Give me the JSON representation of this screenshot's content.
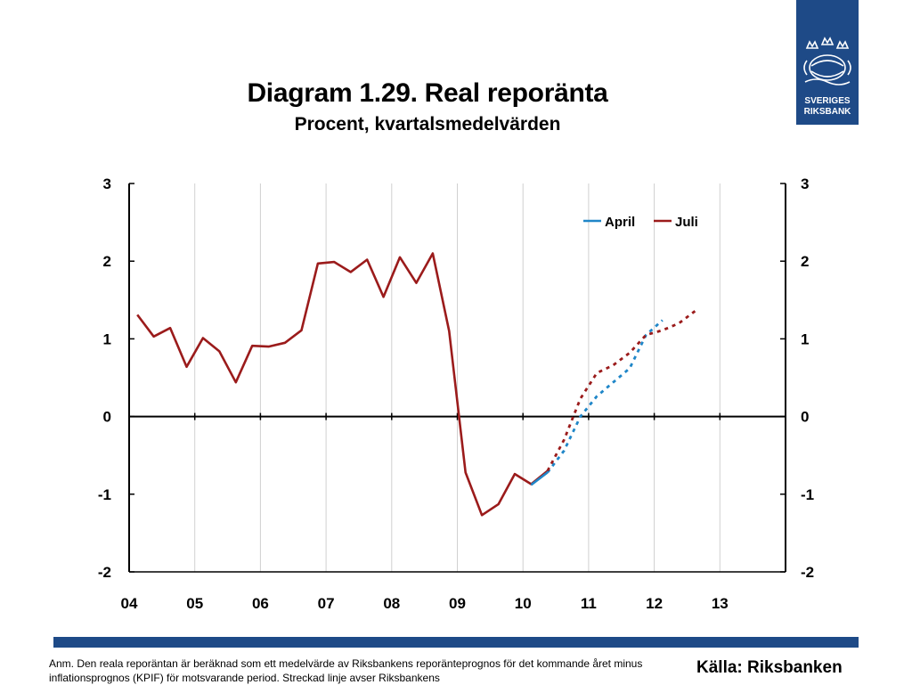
{
  "header": {
    "title": "Diagram 1.29. Real reporänta",
    "subtitle": "Procent, kvartalsmedelvärden"
  },
  "logo": {
    "line1": "SVERIGES",
    "line2": "RIKSBANK",
    "color": "#1e4a87"
  },
  "footer": {
    "note": "Anm. Den reala reporäntan är beräknad som ett medelvärde av Riksbankens reporänteprognos för det kommande året minus inflationsprognos (KPIF) för motsvarande period. Streckad linje avser Riksbankens",
    "source": "Källa: Riksbanken",
    "bar_color": "#1e4a87"
  },
  "chart_data": {
    "type": "line",
    "xlim": [
      2004,
      2014
    ],
    "ylim": [
      -2,
      3
    ],
    "yticks": [
      3,
      2,
      1,
      0,
      -1,
      -2
    ],
    "xticks": [
      "04",
      "05",
      "06",
      "07",
      "08",
      "09",
      "10",
      "11",
      "12",
      "13"
    ],
    "grid": "vertical",
    "legend_position": "top-right",
    "series": [
      {
        "name": "Juli",
        "color": "#9b1b1b",
        "style": "solid",
        "points": [
          [
            2004.125,
            1.31
          ],
          [
            2004.375,
            1.03
          ],
          [
            2004.625,
            1.14
          ],
          [
            2004.875,
            0.64
          ],
          [
            2005.125,
            1.01
          ],
          [
            2005.375,
            0.84
          ],
          [
            2005.625,
            0.44
          ],
          [
            2005.875,
            0.91
          ],
          [
            2006.125,
            0.9
          ],
          [
            2006.375,
            0.95
          ],
          [
            2006.625,
            1.11
          ],
          [
            2006.875,
            1.97
          ],
          [
            2007.125,
            1.99
          ],
          [
            2007.375,
            1.86
          ],
          [
            2007.625,
            2.02
          ],
          [
            2007.875,
            1.54
          ],
          [
            2008.125,
            2.05
          ],
          [
            2008.375,
            1.72
          ],
          [
            2008.625,
            2.1
          ],
          [
            2008.875,
            1.1
          ],
          [
            2009.125,
            -0.72
          ],
          [
            2009.375,
            -1.27
          ],
          [
            2009.625,
            -1.13
          ],
          [
            2009.875,
            -0.74
          ],
          [
            2010.125,
            -0.87
          ],
          [
            2010.375,
            -0.7
          ]
        ]
      },
      {
        "name": "April",
        "color": "#1f86c8",
        "style": "solid",
        "points": [
          [
            2010.125,
            -0.88
          ],
          [
            2010.375,
            -0.72
          ]
        ]
      },
      {
        "name": "April prognos",
        "color": "#1f86c8",
        "style": "dotted",
        "points": [
          [
            2010.375,
            -0.72
          ],
          [
            2010.625,
            -0.44
          ],
          [
            2010.875,
            0.0
          ],
          [
            2011.125,
            0.26
          ],
          [
            2011.375,
            0.44
          ],
          [
            2011.625,
            0.62
          ],
          [
            2011.875,
            1.05
          ],
          [
            2012.125,
            1.24
          ]
        ]
      },
      {
        "name": "Juli prognos",
        "color": "#9b1b1b",
        "style": "dotted",
        "points": [
          [
            2010.375,
            -0.7
          ],
          [
            2010.625,
            -0.3
          ],
          [
            2010.875,
            0.23
          ],
          [
            2011.125,
            0.56
          ],
          [
            2011.375,
            0.66
          ],
          [
            2011.625,
            0.82
          ],
          [
            2011.875,
            1.05
          ],
          [
            2012.125,
            1.11
          ],
          [
            2012.375,
            1.2
          ],
          [
            2012.625,
            1.36
          ]
        ]
      }
    ],
    "legend": [
      {
        "label": "April",
        "color": "#1f86c8"
      },
      {
        "label": "Juli",
        "color": "#9b1b1b"
      }
    ]
  }
}
